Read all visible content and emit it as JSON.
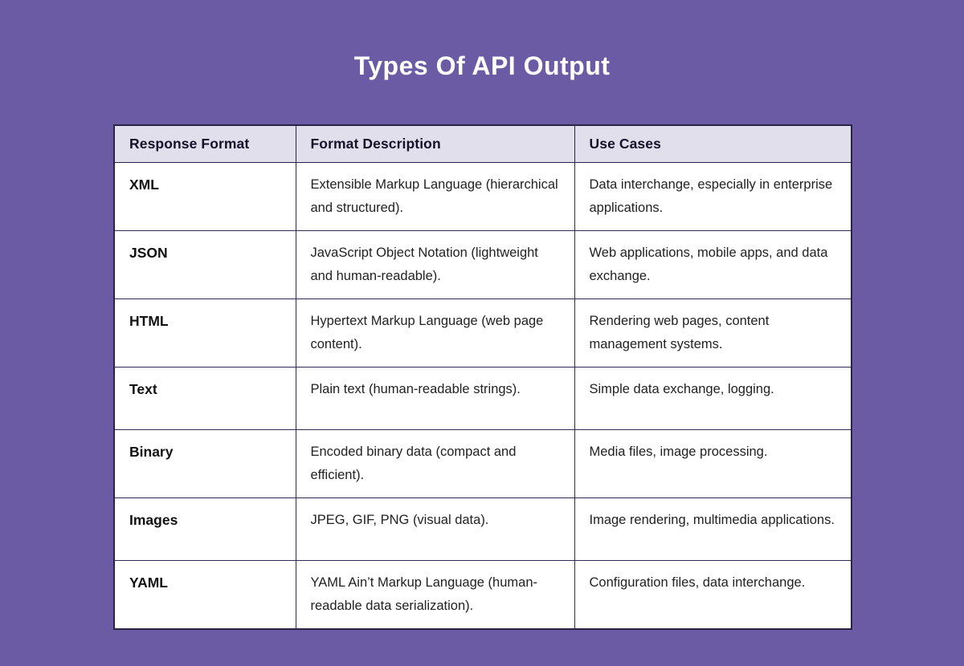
{
  "page": {
    "background_color": "#6b5aa4",
    "title": "Types Of API Output",
    "title_color": "#ffffff"
  },
  "table": {
    "header_bg": "#e2dfec",
    "border_color": "#2a2448",
    "headers": [
      "Response Format",
      "Format Description",
      "Use Cases"
    ],
    "rows": [
      {
        "format": "XML",
        "description": "Extensible Markup Language (hierarchical and structured).",
        "use_cases": "Data interchange, especially in enterprise applications."
      },
      {
        "format": "JSON",
        "description": "JavaScript Object Notation (lightweight and human-readable).",
        "use_cases": "Web applications, mobile apps, and data exchange."
      },
      {
        "format": "HTML",
        "description": "Hypertext Markup Language (web page content).",
        "use_cases": "Rendering web pages, content management systems."
      },
      {
        "format": "Text",
        "description": "Plain text (human-readable strings).",
        "use_cases": "Simple data exchange, logging."
      },
      {
        "format": "Binary",
        "description": "Encoded binary data (compact and efficient).",
        "use_cases": "Media files, image processing."
      },
      {
        "format": "Images",
        "description": "JPEG, GIF, PNG (visual data).",
        "use_cases": "Image rendering, multimedia applications."
      },
      {
        "format": "YAML",
        "description": "YAML Ain’t Markup Language (human-readable data serialization).",
        "use_cases": "Configuration files, data interchange."
      }
    ]
  },
  "chart_data": {
    "type": "table",
    "title": "Types Of API Output",
    "columns": [
      "Response Format",
      "Format Description",
      "Use Cases"
    ],
    "rows": [
      [
        "XML",
        "Extensible Markup Language (hierarchical and structured).",
        "Data interchange, especially in enterprise applications."
      ],
      [
        "JSON",
        "JavaScript Object Notation (lightweight and human-readable).",
        "Web applications, mobile apps, and data exchange."
      ],
      [
        "HTML",
        "Hypertext Markup Language (web page content).",
        "Rendering web pages, content management systems."
      ],
      [
        "Text",
        "Plain text (human-readable strings).",
        "Simple data exchange, logging."
      ],
      [
        "Binary",
        "Encoded binary data (compact and efficient).",
        "Media files, image processing."
      ],
      [
        "Images",
        "JPEG, GIF, PNG (visual data).",
        "Image rendering, multimedia applications."
      ],
      [
        "YAML",
        "YAML Ain’t Markup Language (human-readable data serialization).",
        "Configuration files, data interchange."
      ]
    ],
    "layout": {
      "header_background": "#e2dfec",
      "cell_background": "#ffffff",
      "page_background": "#6b5aa4",
      "grid": true
    }
  }
}
